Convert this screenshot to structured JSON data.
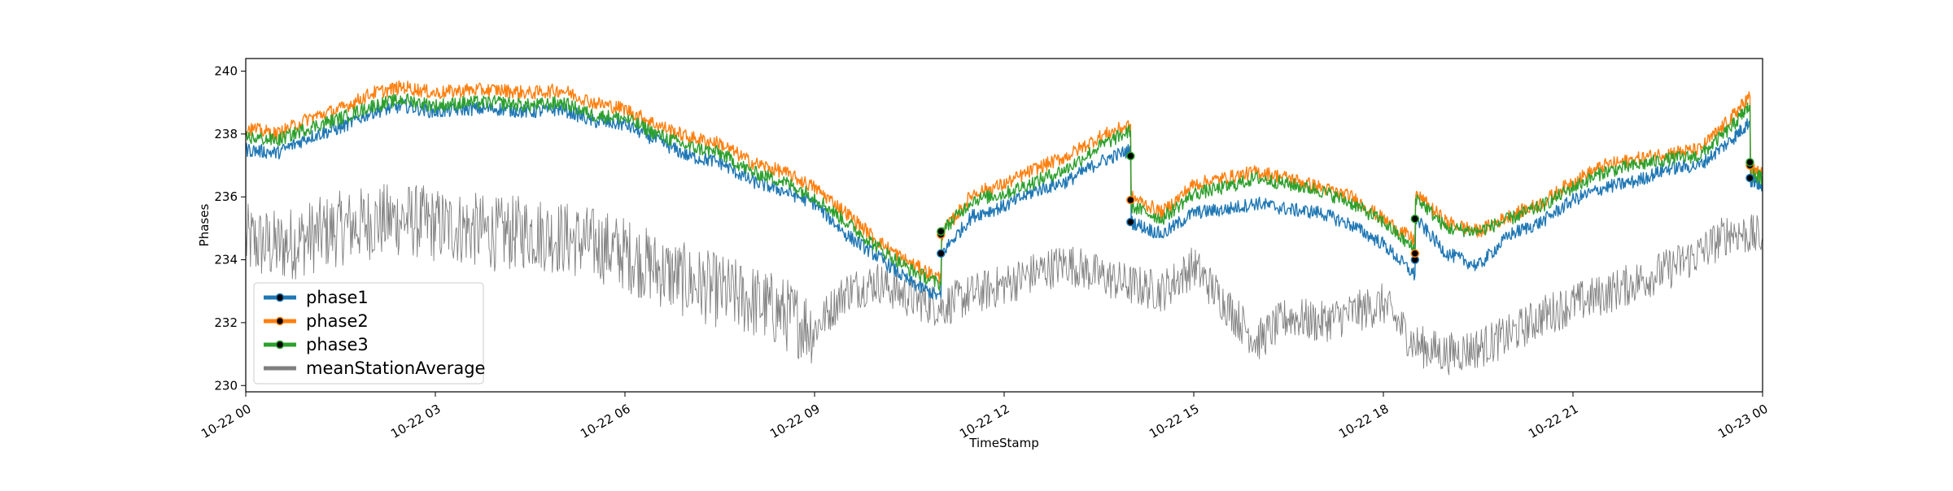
{
  "chart_data": {
    "type": "line",
    "title": "",
    "xlabel": "TimeStamp",
    "ylabel": "Phases",
    "xlim_hours": [
      0,
      24
    ],
    "ylim": [
      229.8,
      240.4
    ],
    "grid": false,
    "legend_position": "lower-left",
    "x_ticks": [
      {
        "hour": 0,
        "label": "10-22 00"
      },
      {
        "hour": 3,
        "label": "10-22 03"
      },
      {
        "hour": 6,
        "label": "10-22 06"
      },
      {
        "hour": 9,
        "label": "10-22 09"
      },
      {
        "hour": 12,
        "label": "10-22 12"
      },
      {
        "hour": 15,
        "label": "10-22 15"
      },
      {
        "hour": 18,
        "label": "10-22 18"
      },
      {
        "hour": 21,
        "label": "10-22 21"
      },
      {
        "hour": 24,
        "label": "10-23 00"
      }
    ],
    "y_ticks": [
      230,
      232,
      234,
      236,
      238,
      240
    ],
    "series": [
      {
        "name": "phase1",
        "color": "#1f77b4",
        "marker": "dots",
        "x_hours": [
          0,
          0.5,
          1,
          1.5,
          2,
          2.5,
          3,
          3.5,
          4,
          4.5,
          5,
          5.5,
          6,
          6.5,
          7,
          7.5,
          8,
          8.5,
          9,
          9.5,
          10,
          10.5,
          11,
          11.01,
          11.5,
          12,
          12.5,
          13,
          13.5,
          14,
          14.01,
          14.5,
          15,
          15.5,
          16,
          16.5,
          17,
          17.5,
          18,
          18.5,
          18.51,
          19,
          19.5,
          20,
          20.5,
          21,
          21.5,
          22,
          22.5,
          23,
          23.5,
          23.8,
          23.81,
          24
        ],
        "values": [
          237.5,
          237.4,
          237.9,
          238.2,
          238.7,
          238.9,
          238.7,
          238.8,
          238.8,
          238.7,
          238.8,
          238.4,
          238.3,
          237.8,
          237.3,
          237.1,
          236.5,
          236.2,
          235.8,
          234.8,
          234.1,
          233.3,
          232.8,
          234.2,
          235.4,
          235.7,
          236.2,
          236.5,
          237.1,
          237.5,
          235.2,
          234.8,
          235.5,
          235.6,
          235.8,
          235.6,
          235.5,
          235.1,
          234.5,
          233.5,
          235.3,
          234.2,
          233.8,
          234.8,
          235.2,
          235.9,
          236.3,
          236.5,
          236.9,
          237.0,
          237.8,
          238.4,
          236.5,
          236.4
        ],
        "marker_points": [
          [
            11.0,
            234.2
          ],
          [
            14.0,
            235.2
          ],
          [
            18.5,
            234.0
          ],
          [
            23.8,
            236.6
          ]
        ]
      },
      {
        "name": "phase2",
        "color": "#ff7f0e",
        "marker": "dots",
        "x_hours": [
          0,
          0.5,
          1,
          1.5,
          2,
          2.5,
          3,
          3.5,
          4,
          4.5,
          5,
          5.5,
          6,
          6.5,
          7,
          7.5,
          8,
          8.5,
          9,
          9.5,
          10,
          10.5,
          11,
          11.01,
          11.5,
          12,
          12.5,
          13,
          13.5,
          14,
          14.01,
          14.5,
          15,
          15.5,
          16,
          16.5,
          17,
          17.5,
          18,
          18.5,
          18.51,
          19,
          19.5,
          20,
          20.5,
          21,
          21.5,
          22,
          22.5,
          23,
          23.5,
          23.8,
          23.81,
          24
        ],
        "values": [
          238.2,
          238.0,
          238.5,
          238.8,
          239.3,
          239.5,
          239.3,
          239.4,
          239.4,
          239.3,
          239.4,
          239.0,
          238.8,
          238.3,
          237.9,
          237.7,
          237.1,
          236.8,
          236.3,
          235.5,
          234.6,
          233.9,
          233.4,
          234.8,
          236.1,
          236.4,
          236.9,
          237.3,
          237.9,
          238.3,
          236.0,
          235.5,
          236.4,
          236.6,
          236.8,
          236.6,
          236.3,
          236.0,
          235.3,
          234.6,
          236.1,
          235.2,
          234.9,
          235.4,
          235.8,
          236.5,
          237.0,
          237.2,
          237.4,
          237.5,
          238.5,
          239.2,
          236.9,
          236.7
        ],
        "marker_points": [
          [
            11.0,
            234.8
          ],
          [
            14.0,
            235.9
          ],
          [
            18.5,
            234.2
          ],
          [
            23.8,
            237.0
          ]
        ]
      },
      {
        "name": "phase3",
        "color": "#2ca02c",
        "marker": "dots",
        "x_hours": [
          0,
          0.5,
          1,
          1.5,
          2,
          2.5,
          3,
          3.5,
          4,
          4.5,
          5,
          5.5,
          6,
          6.5,
          7,
          7.5,
          8,
          8.5,
          9,
          9.5,
          10,
          10.5,
          11,
          11.01,
          11.5,
          12,
          12.5,
          13,
          13.5,
          14,
          14.01,
          14.5,
          15,
          15.5,
          16,
          16.5,
          17,
          17.5,
          18,
          18.5,
          18.51,
          19,
          19.5,
          20,
          20.5,
          21,
          21.5,
          22,
          22.5,
          23,
          23.5,
          23.8,
          23.81,
          24
        ],
        "values": [
          237.9,
          237.8,
          238.2,
          238.5,
          238.9,
          239.1,
          238.9,
          239.0,
          239.0,
          238.9,
          239.0,
          238.6,
          238.5,
          238.0,
          237.6,
          237.4,
          236.8,
          236.5,
          236.0,
          235.2,
          234.4,
          233.7,
          233.2,
          234.9,
          235.9,
          236.1,
          236.5,
          236.9,
          237.6,
          238.1,
          235.7,
          235.3,
          236.1,
          236.3,
          236.6,
          236.4,
          236.2,
          235.8,
          235.2,
          234.3,
          236.0,
          235.0,
          234.9,
          235.3,
          235.7,
          236.3,
          236.8,
          237.0,
          237.2,
          237.3,
          238.2,
          238.9,
          236.7,
          236.6
        ],
        "marker_points": [
          [
            11.0,
            234.9
          ],
          [
            14.0,
            237.3
          ],
          [
            18.5,
            235.3
          ],
          [
            23.8,
            237.1
          ]
        ]
      },
      {
        "name": "meanStationAverage",
        "color": "#7f7f7f",
        "marker": "none",
        "x_hours": [
          0,
          0.5,
          1,
          1.5,
          2,
          2.5,
          3,
          3.5,
          4,
          4.5,
          5,
          5.5,
          6,
          6.5,
          7,
          7.5,
          8,
          8.5,
          9,
          9.5,
          10,
          10.5,
          11,
          11.5,
          12,
          12.5,
          13,
          13.5,
          14,
          14.5,
          15,
          15.5,
          16,
          16.5,
          17,
          17.5,
          18,
          18.5,
          19,
          19.5,
          20,
          20.5,
          21,
          21.5,
          22,
          22.5,
          23,
          23.5,
          24
        ],
        "values": [
          234.6,
          234.4,
          234.7,
          235.0,
          235.2,
          235.3,
          235.1,
          235.0,
          234.8,
          234.9,
          234.7,
          234.5,
          234.2,
          233.7,
          233.3,
          233.0,
          232.7,
          232.3,
          231.8,
          233.0,
          233.3,
          232.8,
          232.5,
          232.9,
          233.2,
          233.6,
          233.9,
          233.5,
          233.2,
          233.0,
          233.8,
          232.6,
          231.4,
          232.2,
          232.0,
          232.3,
          232.6,
          231.3,
          231.0,
          231.2,
          231.6,
          232.2,
          232.6,
          232.9,
          233.3,
          233.7,
          234.2,
          234.9,
          234.7
        ],
        "marker_points": []
      }
    ]
  }
}
